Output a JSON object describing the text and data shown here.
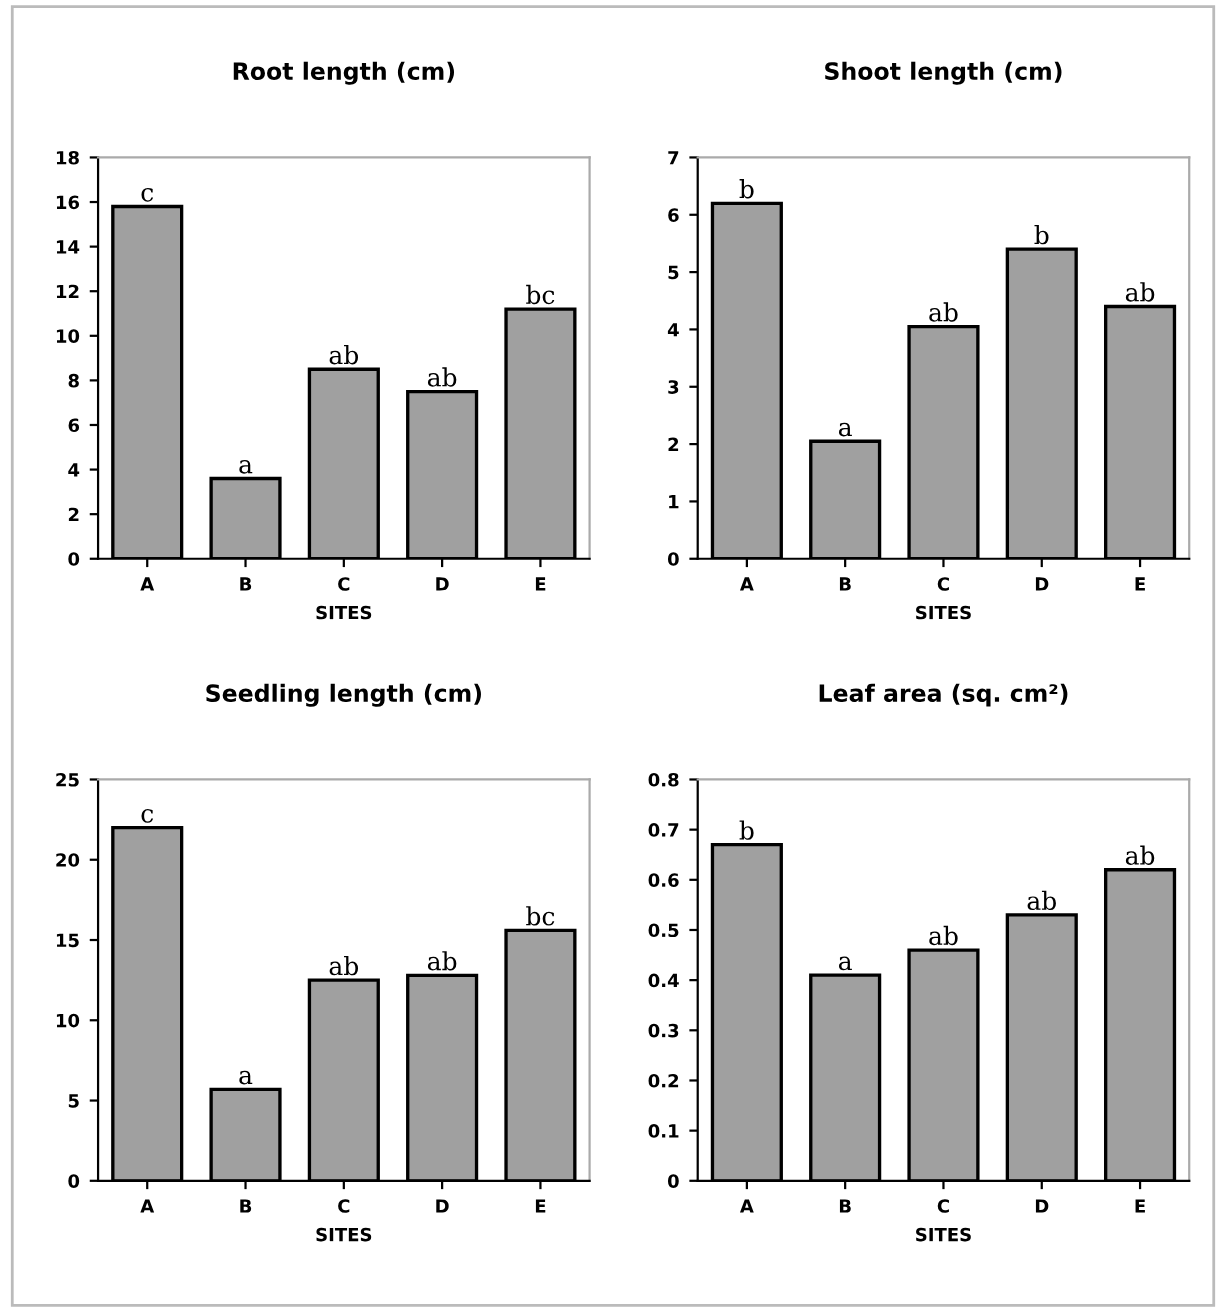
{
  "chart_data": [
    {
      "type": "bar",
      "title": "Root length (cm)",
      "xlabel": "SITES",
      "categories": [
        "A",
        "B",
        "C",
        "D",
        "E"
      ],
      "values": [
        15.8,
        3.6,
        8.5,
        7.5,
        11.2
      ],
      "color": "#a0a0a0",
      "ylim": [
        0,
        18
      ],
      "yticks": [
        0,
        2,
        4,
        6,
        8,
        10,
        12,
        14,
        16,
        18
      ],
      "grid": false,
      "legend": false,
      "annotations": [
        {
          "text": "c",
          "x": "A",
          "y": 15.8
        },
        {
          "text": "a",
          "x": "B",
          "y": 3.6
        },
        {
          "text": "ab",
          "x": "C",
          "y": 8.5
        },
        {
          "text": "ab",
          "x": "D",
          "y": 7.5
        },
        {
          "text": "bc",
          "x": "E",
          "y": 11.2
        }
      ]
    },
    {
      "type": "bar",
      "title": "Shoot length (cm)",
      "xlabel": "SITES",
      "categories": [
        "A",
        "B",
        "C",
        "D",
        "E"
      ],
      "values": [
        6.2,
        2.05,
        4.05,
        5.4,
        4.4
      ],
      "color": "#a0a0a0",
      "ylim": [
        0,
        7
      ],
      "yticks": [
        0,
        1,
        2,
        3,
        4,
        5,
        6,
        7
      ],
      "grid": false,
      "legend": false,
      "annotations": [
        {
          "text": "b",
          "x": "A",
          "y": 6.2
        },
        {
          "text": "a",
          "x": "B",
          "y": 2.05
        },
        {
          "text": "ab",
          "x": "C",
          "y": 4.05
        },
        {
          "text": "b",
          "x": "D",
          "y": 5.4
        },
        {
          "text": "ab",
          "x": "E",
          "y": 4.4
        }
      ]
    },
    {
      "type": "bar",
      "title": "Seedling length (cm)",
      "xlabel": "SITES",
      "categories": [
        "A",
        "B",
        "C",
        "D",
        "E"
      ],
      "values": [
        22,
        5.7,
        12.5,
        12.8,
        15.6
      ],
      "color": "#a0a0a0",
      "ylim": [
        0,
        25
      ],
      "yticks": [
        0,
        5,
        10,
        15,
        20,
        25
      ],
      "grid": false,
      "legend": false,
      "annotations": [
        {
          "text": "c",
          "x": "A",
          "y": 22
        },
        {
          "text": "a",
          "x": "B",
          "y": 5.7
        },
        {
          "text": "ab",
          "x": "C",
          "y": 12.5
        },
        {
          "text": "ab",
          "x": "D",
          "y": 12.8
        },
        {
          "text": "bc",
          "x": "E",
          "y": 15.6
        }
      ]
    },
    {
      "type": "bar",
      "title": "Leaf area (sq. cm²)",
      "xlabel": "SITES",
      "categories": [
        "A",
        "B",
        "C",
        "D",
        "E"
      ],
      "values": [
        0.67,
        0.41,
        0.46,
        0.53,
        0.62
      ],
      "color": "#a0a0a0",
      "ylim": [
        0,
        0.8
      ],
      "yticks": [
        0,
        0.1,
        0.2,
        0.3,
        0.4,
        0.5,
        0.6,
        0.7,
        0.8
      ],
      "grid": false,
      "legend": false,
      "annotations": [
        {
          "text": "b",
          "x": "A",
          "y": 0.67
        },
        {
          "text": "a",
          "x": "B",
          "y": 0.41
        },
        {
          "text": "ab",
          "x": "C",
          "y": 0.46
        },
        {
          "text": "ab",
          "x": "D",
          "y": 0.53
        },
        {
          "text": "ab",
          "x": "E",
          "y": 0.62
        }
      ]
    }
  ]
}
